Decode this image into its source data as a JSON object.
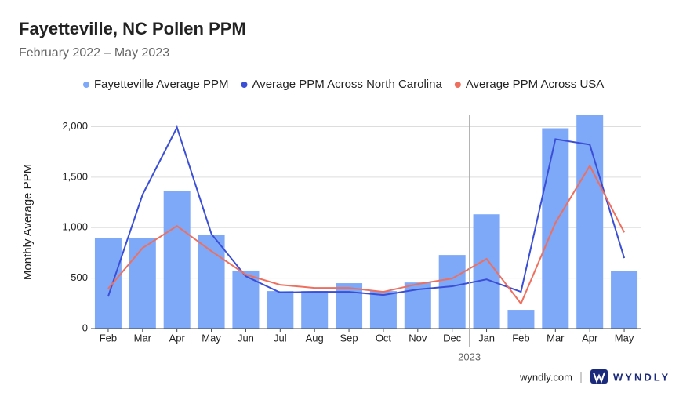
{
  "chart_data": {
    "type": "bar-line",
    "title": "Fayetteville, NC Pollen PPM",
    "subtitle": "February 2022 – May 2023",
    "y_label": "Monthly Average PPM",
    "annotation": "2023",
    "categories": [
      "Feb",
      "Mar",
      "Apr",
      "May",
      "Jun",
      "Jul",
      "Aug",
      "Sep",
      "Oct",
      "Nov",
      "Dec",
      "Jan",
      "Feb",
      "Mar",
      "Apr",
      "May"
    ],
    "series": [
      {
        "name": "Fayetteville Average PPM",
        "type": "bar",
        "color": "#7ea8f8",
        "values": [
          900,
          900,
          1360,
          930,
          575,
          372,
          372,
          450,
          372,
          457,
          729,
          1132,
          186,
          1984,
          2116,
          574
        ]
      },
      {
        "name": "Average PPM Across North Carolina",
        "type": "line",
        "color": "#3b4fd6",
        "values": [
          318,
          1326,
          1992,
          938,
          519,
          357,
          364,
          364,
          333,
          388,
          419,
          488,
          364,
          1876,
          1822,
          698
        ]
      },
      {
        "name": "Average PPM Across USA",
        "type": "line",
        "color": "#ef6f5e",
        "values": [
          395,
          798,
          1016,
          767,
          535,
          434,
          403,
          403,
          364,
          442,
          496,
          690,
          248,
          1047,
          1612,
          953
        ]
      }
    ],
    "ylim": [
      0,
      2120
    ],
    "yticks": [
      0,
      500,
      {
        "value": 1000,
        "label": "1,000"
      },
      {
        "value": 1500,
        "label": "1,500"
      },
      {
        "value": 2000,
        "label": "2,000"
      }
    ],
    "grid": true,
    "legend": "top"
  },
  "footer": {
    "site": "wyndly.com",
    "brand": "WYNDLY"
  }
}
